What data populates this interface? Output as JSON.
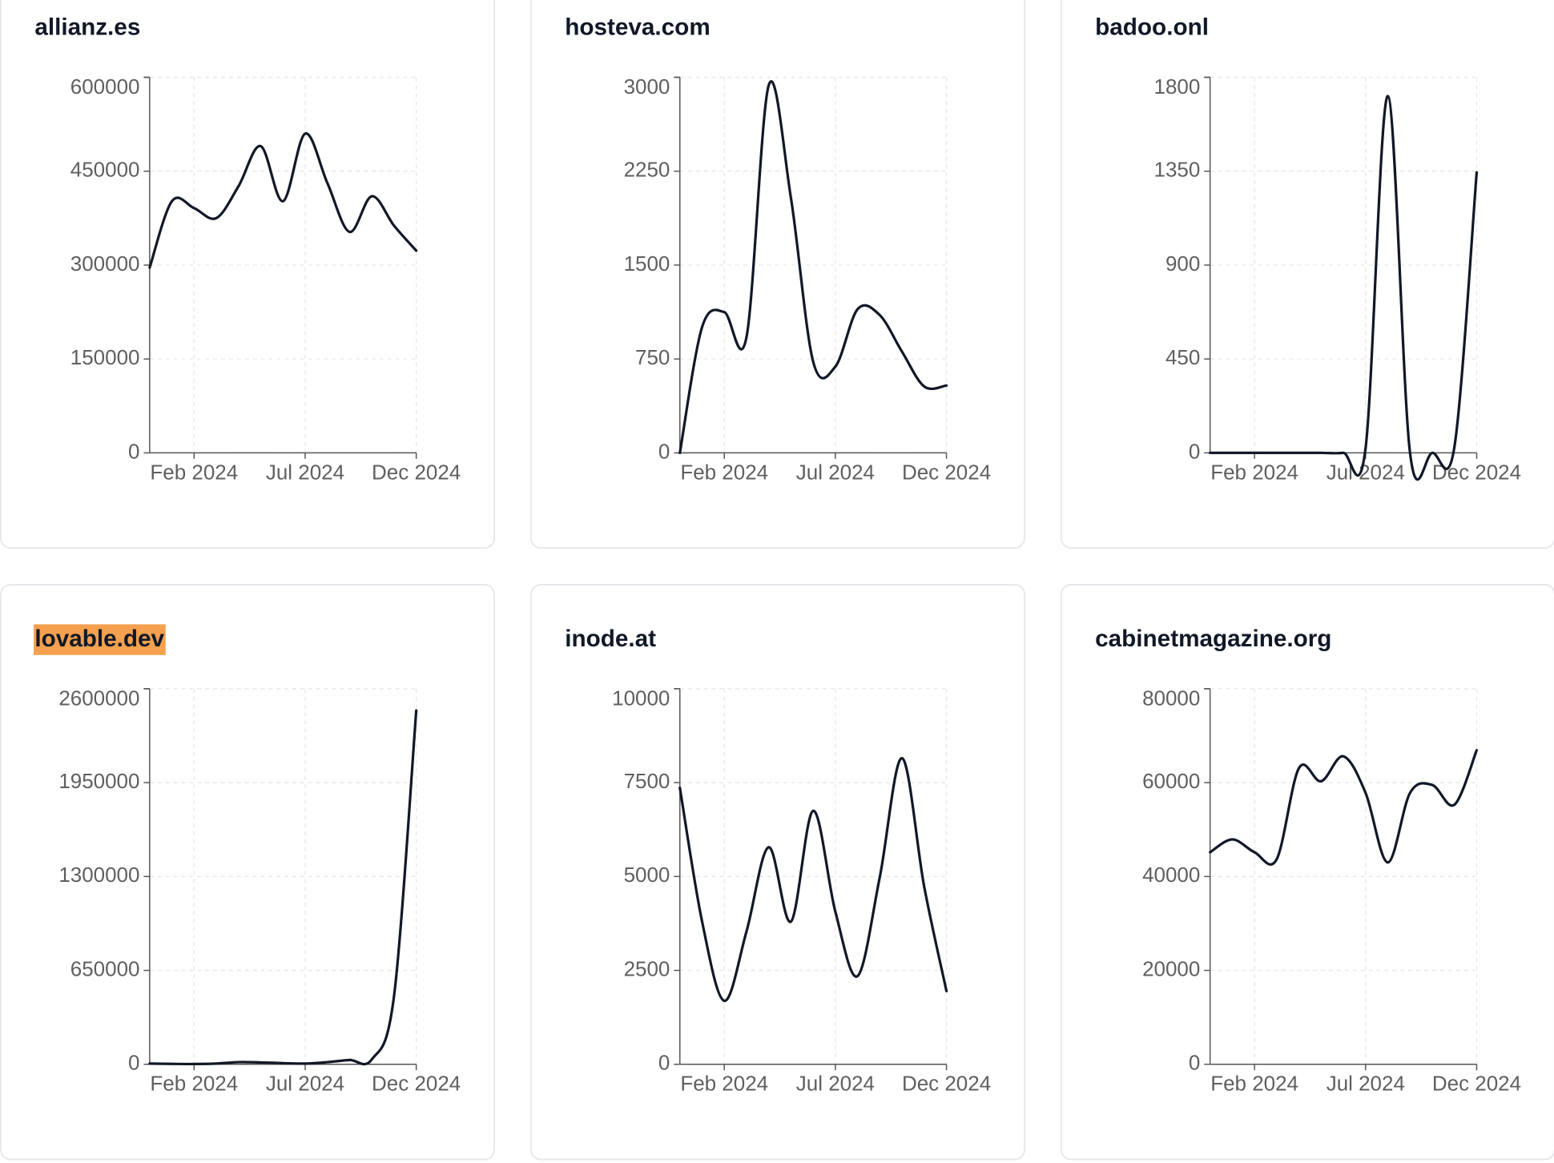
{
  "chart_data": [
    {
      "type": "line",
      "title": "allianz.es",
      "x": [
        "Dec 2023",
        "Jan 2024",
        "Feb 2024",
        "Mar 2024",
        "Apr 2024",
        "May 2024",
        "Jun 2024",
        "Jul 2024",
        "Aug 2024",
        "Sep 2024",
        "Oct 2024",
        "Nov 2024",
        "Dec 2024"
      ],
      "xlim": [
        "Dec 2023",
        "Dec 2024"
      ],
      "xticks": [
        "Feb 2024",
        "Jul 2024",
        "Dec 2024"
      ],
      "ylim": [
        0,
        600000
      ],
      "yticks": [
        0,
        150000,
        300000,
        450000,
        600000
      ],
      "grid": true,
      "series": [
        {
          "color": "#111827",
          "values": [
            296000,
            402000,
            391000,
            375000,
            426000,
            490000,
            402000,
            510000,
            431000,
            353000,
            410000,
            363000,
            323000
          ]
        }
      ]
    },
    {
      "type": "line",
      "title": "hosteva.com",
      "x": [
        "Dec 2023",
        "Jan 2024",
        "Feb 2024",
        "Mar 2024",
        "Apr 2024",
        "May 2024",
        "Jun 2024",
        "Jul 2024",
        "Aug 2024",
        "Sep 2024",
        "Oct 2024",
        "Nov 2024",
        "Dec 2024"
      ],
      "xlim": [
        "Dec 2023",
        "Dec 2024"
      ],
      "xticks": [
        "Feb 2024",
        "Jul 2024",
        "Dec 2024"
      ],
      "ylim": [
        0,
        3000
      ],
      "yticks": [
        0,
        750,
        1500,
        2250,
        3000
      ],
      "grid": true,
      "series": [
        {
          "color": "#111827",
          "values": [
            0,
            1005,
            1124,
            926,
            2937,
            2035,
            728,
            689,
            1148,
            1100,
            808,
            530,
            538
          ]
        }
      ]
    },
    {
      "type": "line",
      "title": "badoo.onl",
      "x": [
        "Dec 2023",
        "Jan 2024",
        "Feb 2024",
        "Mar 2024",
        "Apr 2024",
        "May 2024",
        "Jun 2024",
        "Jul 2024",
        "Aug 2024",
        "Sep 2024",
        "Oct 2024",
        "Nov 2024",
        "Dec 2024"
      ],
      "xlim": [
        "Dec 2023",
        "Dec 2024"
      ],
      "xticks": [
        "Feb 2024",
        "Jul 2024",
        "Dec 2024"
      ],
      "ylim": [
        0,
        1800
      ],
      "yticks": [
        0,
        450,
        900,
        1350,
        1800
      ],
      "grid": true,
      "series": [
        {
          "color": "#111827",
          "values": [
            0,
            0,
            0,
            0,
            0,
            0,
            0,
            24,
            1710,
            0,
            0,
            30,
            1344
          ]
        }
      ]
    },
    {
      "type": "line",
      "title": "lovable.dev",
      "title_highlight": "#f4a04e",
      "x": [
        "Dec 2023",
        "Jan 2024",
        "Feb 2024",
        "Mar 2024",
        "Apr 2024",
        "May 2024",
        "Jun 2024",
        "Jul 2024",
        "Aug 2024",
        "Sep 2024",
        "Oct 2024",
        "Nov 2024",
        "Dec 2024"
      ],
      "xlim": [
        "Dec 2023",
        "Dec 2024"
      ],
      "xticks": [
        "Feb 2024",
        "Jul 2024",
        "Dec 2024"
      ],
      "ylim": [
        0,
        2600000
      ],
      "yticks": [
        0,
        650000,
        1300000,
        1950000,
        2600000
      ],
      "grid": true,
      "series": [
        {
          "color": "#111827",
          "values": [
            5000,
            3000,
            2000,
            5000,
            15000,
            13000,
            8000,
            5000,
            15000,
            30000,
            34000,
            473000,
            2449000
          ]
        }
      ]
    },
    {
      "type": "line",
      "title": "inode.at",
      "x": [
        "Dec 2023",
        "Jan 2024",
        "Feb 2024",
        "Mar 2024",
        "Apr 2024",
        "May 2024",
        "Jun 2024",
        "Jul 2024",
        "Aug 2024",
        "Sep 2024",
        "Oct 2024",
        "Nov 2024",
        "Dec 2024"
      ],
      "xlim": [
        "Dec 2023",
        "Dec 2024"
      ],
      "xticks": [
        "Feb 2024",
        "Jul 2024",
        "Dec 2024"
      ],
      "ylim": [
        0,
        10000
      ],
      "yticks": [
        0,
        2500,
        5000,
        7500,
        10000
      ],
      "grid": true,
      "series": [
        {
          "color": "#111827",
          "values": [
            7361,
            3800,
            1690,
            3540,
            5780,
            3800,
            6750,
            4060,
            2350,
            4990,
            8150,
            4720,
            1950
          ]
        }
      ]
    },
    {
      "type": "line",
      "title": "cabinetmagazine.org",
      "x": [
        "Dec 2023",
        "Jan 2024",
        "Feb 2024",
        "Mar 2024",
        "Apr 2024",
        "May 2024",
        "Jun 2024",
        "Jul 2024",
        "Aug 2024",
        "Sep 2024",
        "Oct 2024",
        "Nov 2024",
        "Dec 2024"
      ],
      "xlim": [
        "Dec 2023",
        "Dec 2024"
      ],
      "xticks": [
        "Feb 2024",
        "Jul 2024",
        "Dec 2024"
      ],
      "ylim": [
        0,
        80000
      ],
      "yticks": [
        0,
        20000,
        40000,
        60000,
        80000
      ],
      "grid": true,
      "series": [
        {
          "color": "#111827",
          "values": [
            45170,
            47900,
            45170,
            43700,
            63100,
            60300,
            65600,
            57800,
            43000,
            57800,
            59500,
            55300,
            66900
          ]
        }
      ]
    }
  ]
}
